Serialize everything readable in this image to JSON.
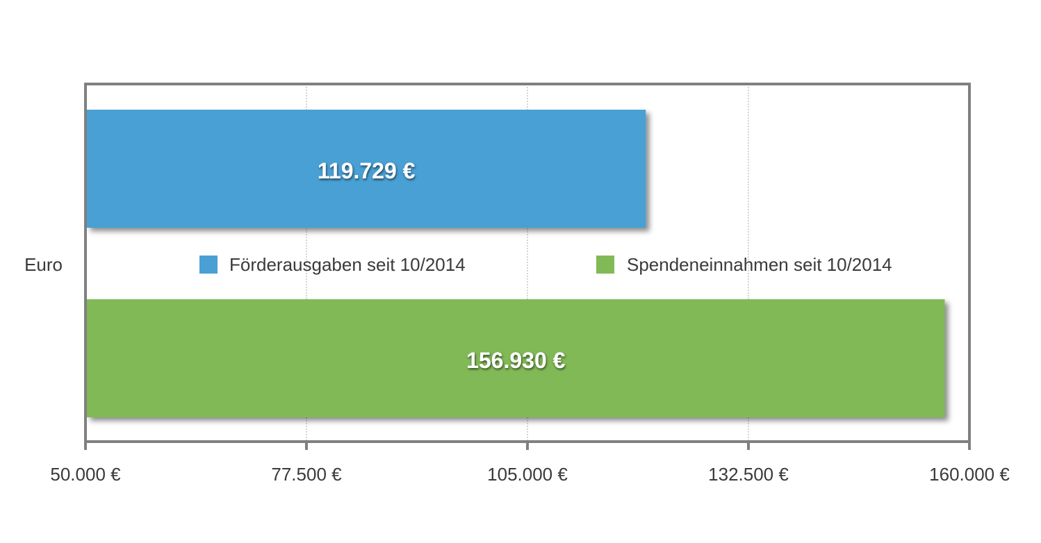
{
  "chart_data": {
    "type": "bar",
    "orientation": "horizontal",
    "category_label": "Euro",
    "series": [
      {
        "name": "Förderausgaben seit 10/2014",
        "value": 119729,
        "value_label": "119.729 €",
        "color": "#4aa0d4"
      },
      {
        "name": "Spendeneinnahmen seit 10/2014",
        "value": 156930,
        "value_label": "156.930 €",
        "color": "#81b957"
      }
    ],
    "xlim": [
      50000,
      160000
    ],
    "x_ticks": [
      {
        "value": 50000,
        "label": "50.000 €"
      },
      {
        "value": 77500,
        "label": "77.500 €"
      },
      {
        "value": 105000,
        "label": "105.000 €"
      },
      {
        "value": 132500,
        "label": "132.500 €"
      },
      {
        "value": 160000,
        "label": "160.000 €"
      }
    ],
    "grid": "vertical-dotted",
    "legend_position": "center",
    "title": "",
    "xlabel": "",
    "ylabel": ""
  },
  "colors": {
    "frame": "#808080",
    "grid": "#aaaaaa",
    "text": "#3a3a3a"
  }
}
